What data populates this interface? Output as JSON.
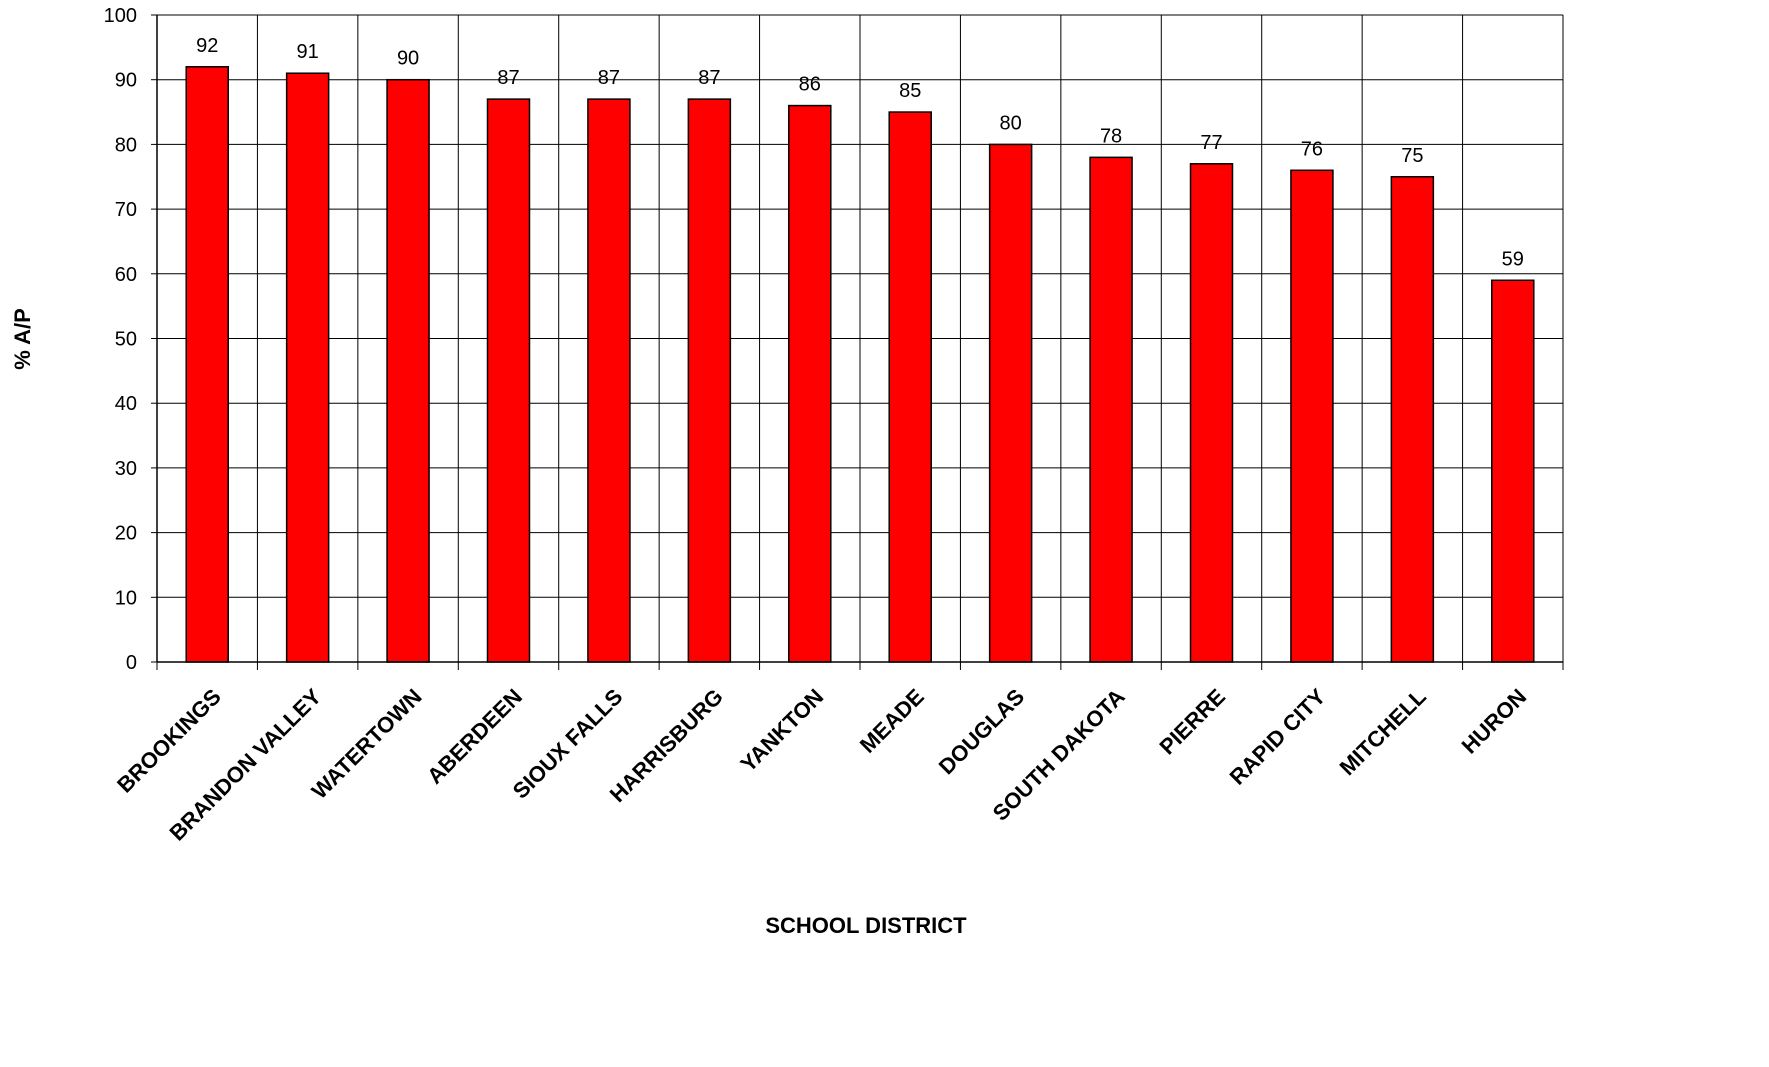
{
  "chart_data": {
    "type": "bar",
    "title": "",
    "xlabel": "SCHOOL DISTRICT",
    "ylabel": "% A/P",
    "ylim": [
      0,
      100
    ],
    "yticks": [
      0,
      10,
      20,
      30,
      40,
      50,
      60,
      70,
      80,
      90,
      100
    ],
    "grid": true,
    "legend": "none",
    "categories": [
      "BROOKINGS",
      "BRANDON VALLEY",
      "WATERTOWN",
      "ABERDEEN",
      "SIOUX FALLS",
      "HARRISBURG",
      "YANKTON",
      "MEADE",
      "DOUGLAS",
      "SOUTH DAKOTA",
      "PIERRE",
      "RAPID CITY",
      "MITCHELL",
      "HURON"
    ],
    "series": [
      {
        "values": [
          92,
          91,
          90,
          87,
          87,
          87,
          86,
          85,
          80,
          78,
          77,
          76,
          75,
          59
        ]
      }
    ],
    "colors": {
      "bar": "#ff0000",
      "bar_outline": "#000000",
      "grid": "#000000"
    }
  }
}
